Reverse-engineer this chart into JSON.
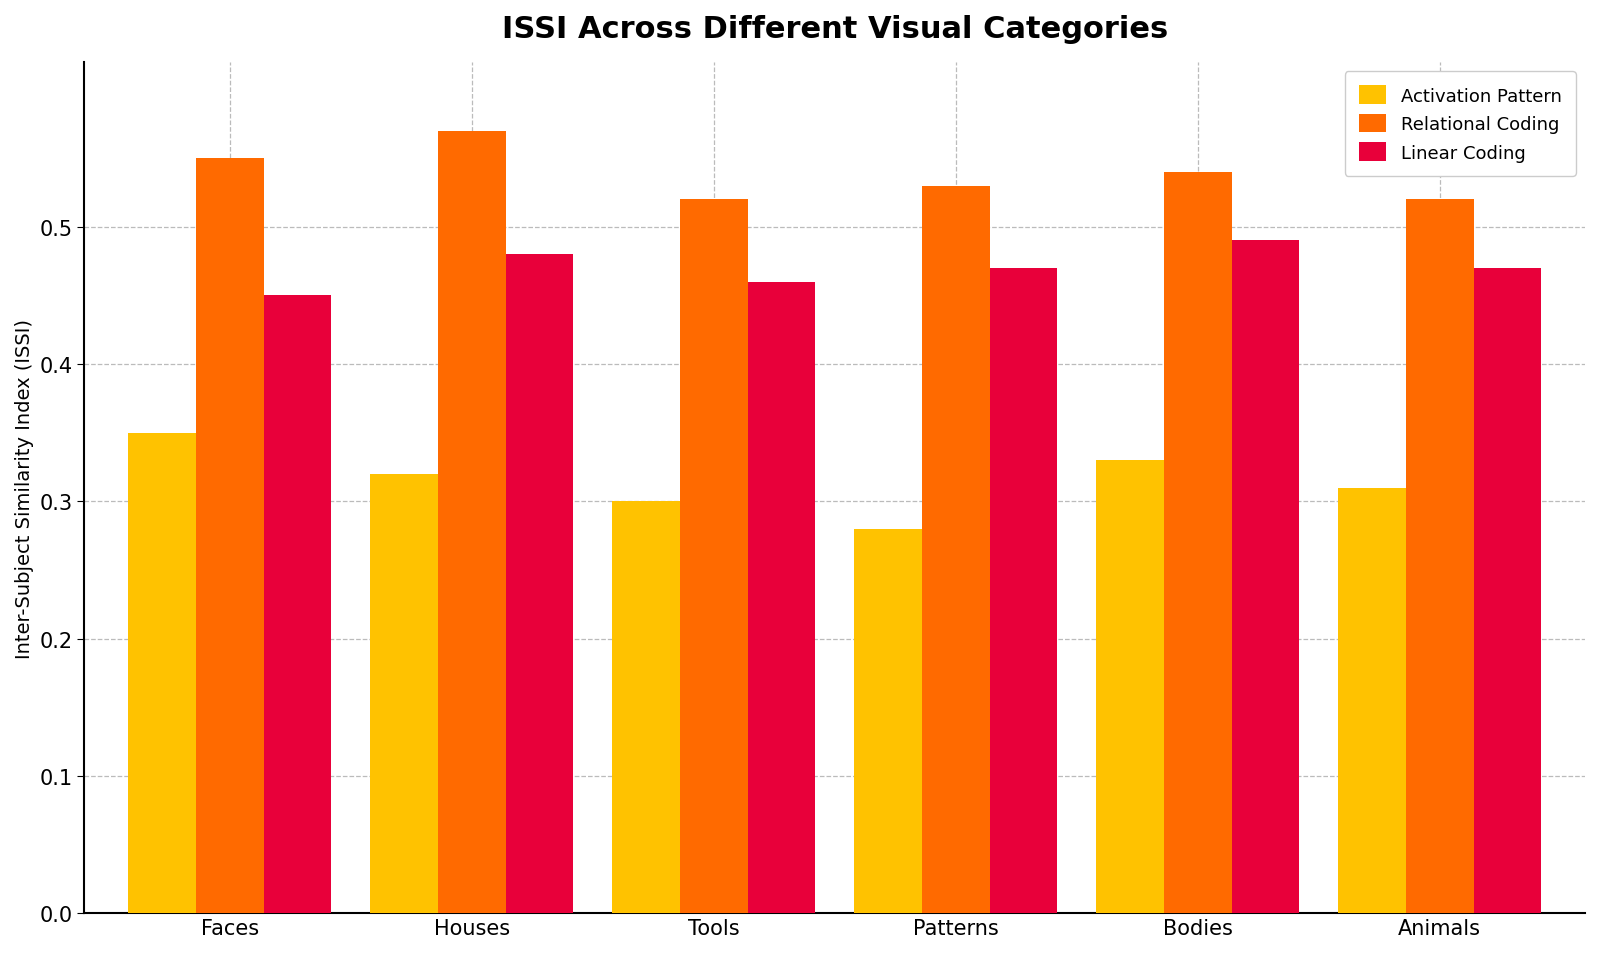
{
  "title": "ISSI Across Different Visual Categories",
  "ylabel": "Inter-Subject Similarity Index (ISSI)",
  "categories": [
    "Faces",
    "Houses",
    "Tools",
    "Patterns",
    "Bodies",
    "Animals"
  ],
  "series": {
    "Activation Pattern": [
      0.35,
      0.32,
      0.3,
      0.28,
      0.33,
      0.31
    ],
    "Relational Coding": [
      0.55,
      0.57,
      0.52,
      0.53,
      0.54,
      0.52
    ],
    "Linear Coding": [
      0.45,
      0.48,
      0.46,
      0.47,
      0.49,
      0.47
    ]
  },
  "colors": {
    "Activation Pattern": "#FFC200",
    "Relational Coding": "#FF6A00",
    "Linear Coding": "#E8003A"
  },
  "ylim": [
    0.0,
    0.62
  ],
  "yticks": [
    0.0,
    0.1,
    0.2,
    0.3,
    0.4,
    0.5
  ],
  "bar_width": 0.28,
  "bar_gap": 0.0,
  "background_color": "#FFFFFF",
  "grid_color": "#BBBBBB",
  "title_fontsize": 22,
  "label_fontsize": 14,
  "tick_fontsize": 15,
  "legend_fontsize": 13
}
